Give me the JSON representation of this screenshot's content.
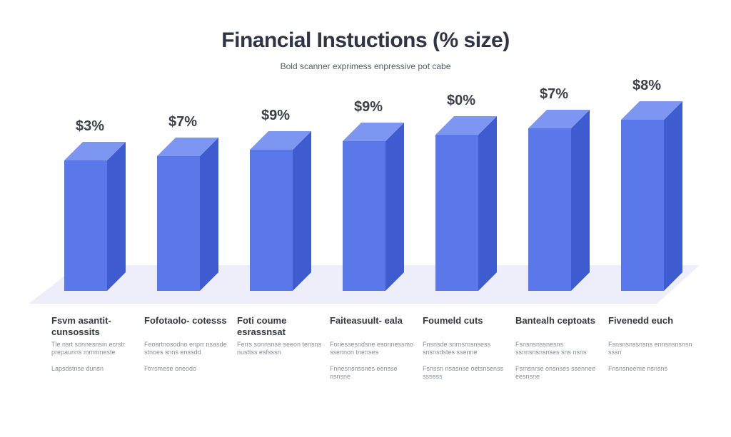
{
  "chart_data": {
    "type": "bar",
    "title": "Financial Instuctions (% size)",
    "subtitle": "Bold scanner exprimess enpressive pot cabe",
    "categories": [
      "Fsvm asantit- cunsossits",
      "Fofotaolo- cotesss",
      "Foti coume esrassnsat",
      "Faiteasuult- eala",
      "Foumeld cuts",
      "Bantealh ceptoats",
      "Fivenedd euch"
    ],
    "value_labels": [
      "$3%",
      "$7%",
      "$9%",
      "$9%",
      "$0%",
      "$7%",
      "$8%"
    ],
    "values": [
      61,
      63,
      66,
      70,
      73,
      76,
      80
    ],
    "descriptions": [
      [
        "Tle nsrt sonnesnsin ecrstr prepaunns mmmneste",
        "Lapsdstnse dunsn"
      ],
      [
        "Feoartnosodno enprr nsasde stnoes snns enssdd",
        "Ftrrsmese oneodo"
      ],
      [
        "Ferrs sonnsnse seeon tensns nusttss esfsssn",
        ""
      ],
      [
        "Foriessesndsne esonnessmo ssennon tnenses",
        "Fnnesnsnssnes eensse nsnsne"
      ],
      [
        "Fnsnsde snrnsrnsnsess snsnsdstes ssenne",
        "Fsnssn nsasnse oetsnsenss sssess"
      ],
      [
        "Fsnsnsnssnesns ssnnsnsnsnses sns nsns",
        "Fsmsnrse onsnses ssennee eesnsne"
      ],
      [
        "Fsnsnsnssnsns ennsnsnsnsn sssn",
        "Fnsnsneeme nsnsns"
      ]
    ],
    "ylim": [
      0,
      100
    ],
    "grid": false,
    "legend": "none",
    "colors": {
      "front": "#5b78ea",
      "top": "#7d96f2",
      "side": "#3f5bd0",
      "floor": "#eeeefa",
      "value_label": "#3b3f4a"
    }
  }
}
